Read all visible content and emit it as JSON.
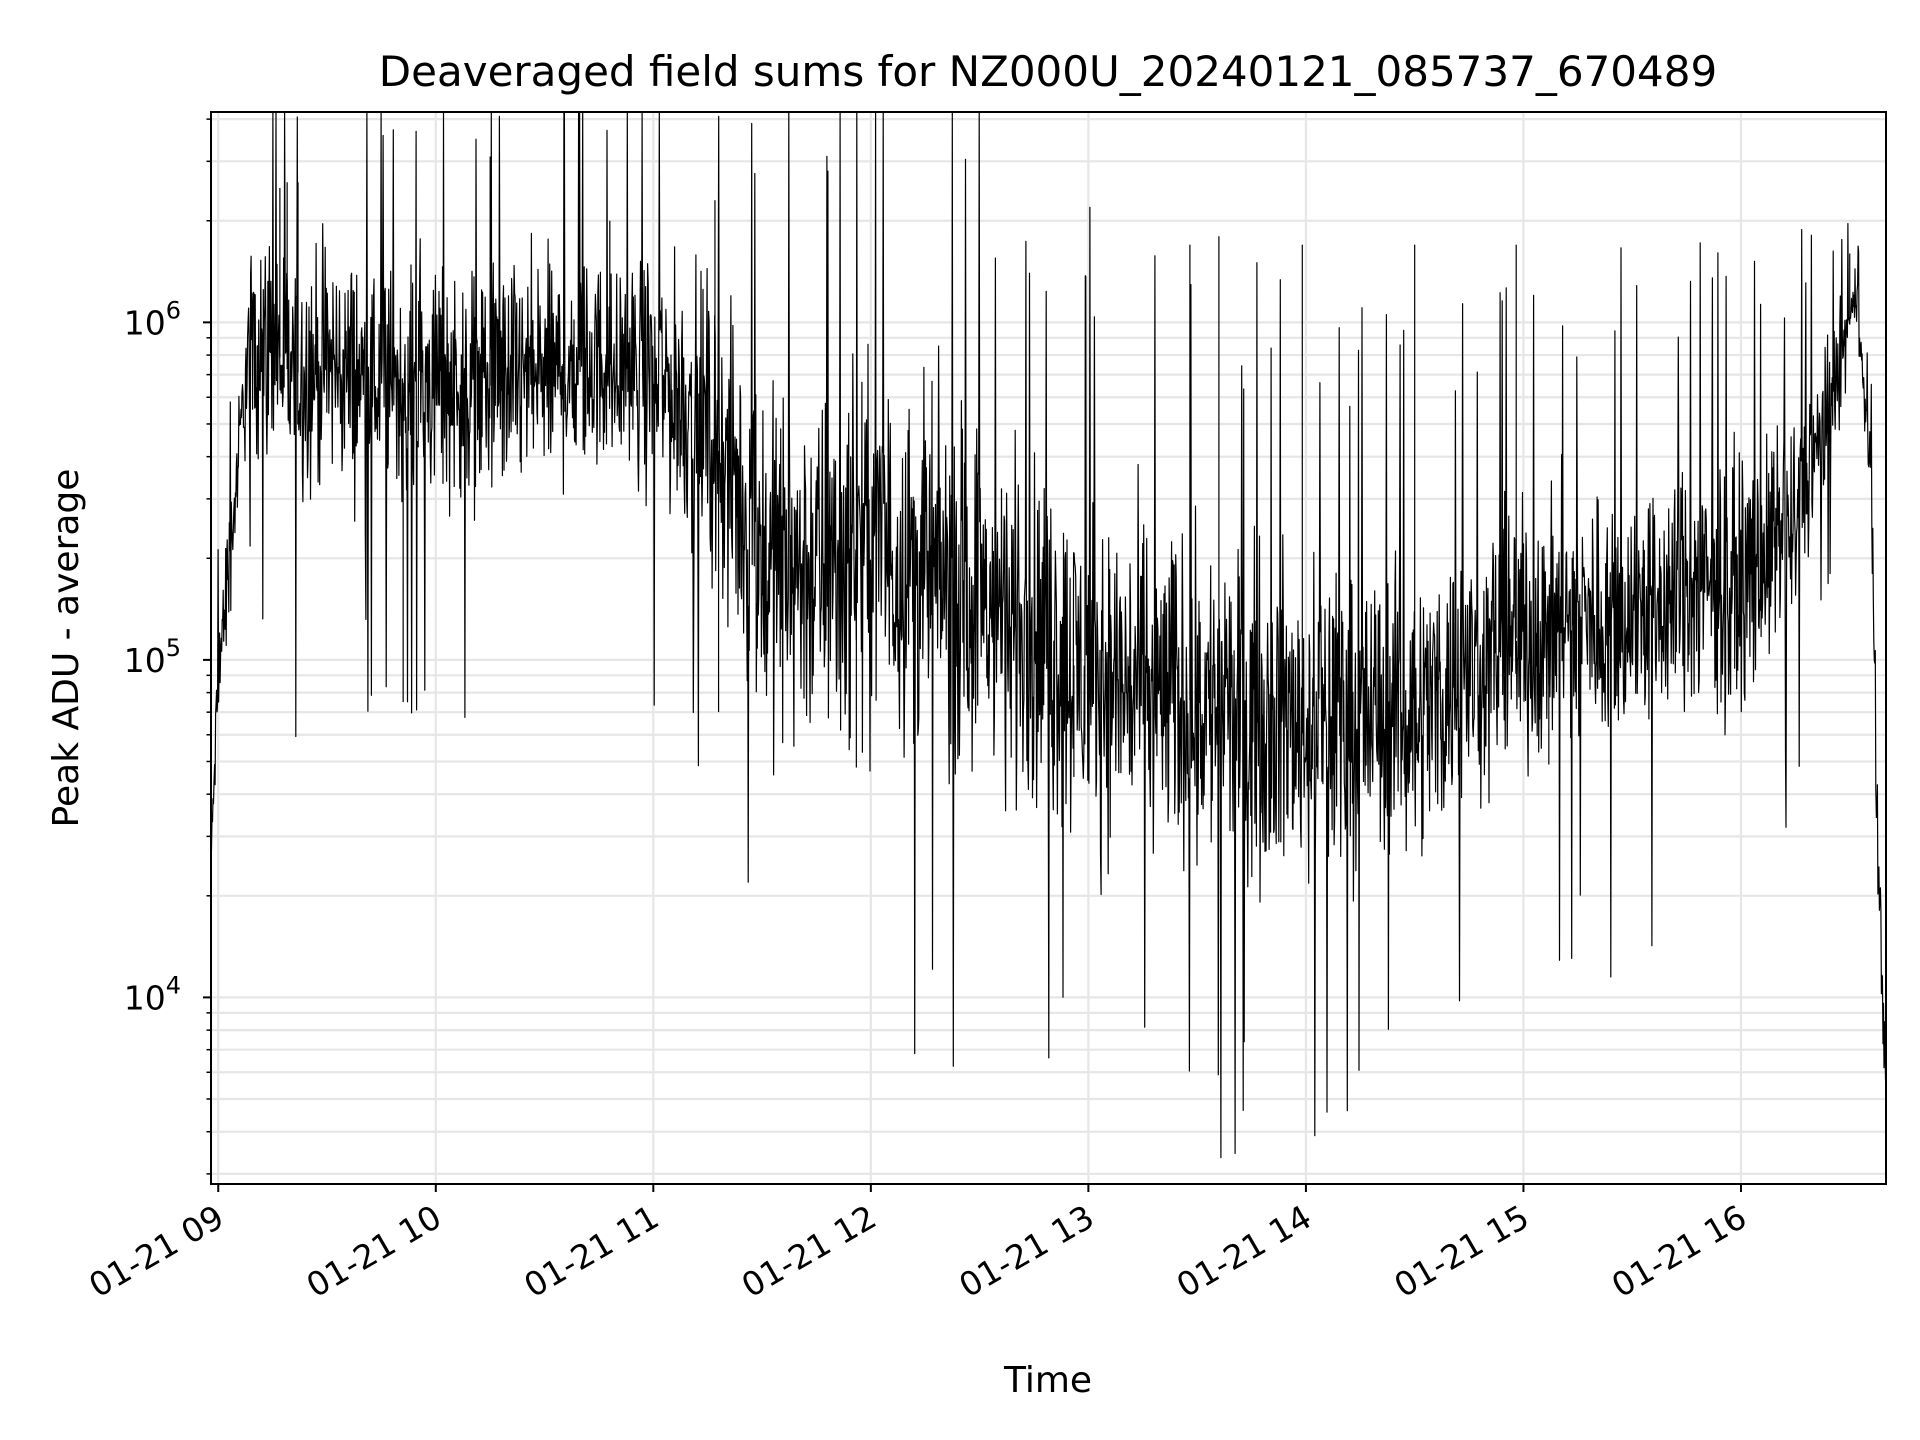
{
  "chart_data": {
    "type": "line",
    "title": "Deaveraged field sums for NZ000U_20240121_085737_670489",
    "xlabel": "Time",
    "ylabel": "Peak ADU - average",
    "yscale": "log",
    "ylim": [
      2800,
      4200000
    ],
    "xlim": [
      "2024-01-21 08:58",
      "2024-01-21 16:40"
    ],
    "x_ticks": [
      "01-21 09",
      "01-21 10",
      "01-21 11",
      "01-21 12",
      "01-21 13",
      "01-21 14",
      "01-21 15",
      "01-21 16"
    ],
    "x_tick_times": [
      "2024-01-21 09:00",
      "2024-01-21 10:00",
      "2024-01-21 11:00",
      "2024-01-21 12:00",
      "2024-01-21 13:00",
      "2024-01-21 14:00",
      "2024-01-21 15:00",
      "2024-01-21 16:00"
    ],
    "y_ticks": [
      {
        "value": 10000,
        "base": "10",
        "exp": "4"
      },
      {
        "value": 100000,
        "base": "10",
        "exp": "5"
      },
      {
        "value": 1000000,
        "base": "10",
        "exp": "6"
      }
    ],
    "grid": true,
    "line_color": "#000000",
    "series": [
      {
        "x": [
          "2024-01-21 08:58",
          "2024-01-21 09:00",
          "2024-01-21 09:02",
          "2024-01-21 09:04",
          "2024-01-21 09:06",
          "2024-01-21 09:08",
          "2024-01-21 09:10",
          "2024-01-21 09:15",
          "2024-01-21 09:20",
          "2024-01-21 09:30",
          "2024-01-21 09:45",
          "2024-01-21 10:00",
          "2024-01-21 10:15",
          "2024-01-21 10:30",
          "2024-01-21 10:45",
          "2024-01-21 11:00",
          "2024-01-21 11:15",
          "2024-01-21 11:30",
          "2024-01-21 11:45",
          "2024-01-21 12:00",
          "2024-01-21 12:30",
          "2024-01-21 13:00",
          "2024-01-21 13:30",
          "2024-01-21 14:00",
          "2024-01-21 14:30",
          "2024-01-21 15:00",
          "2024-01-21 15:30",
          "2024-01-21 16:00",
          "2024-01-21 16:15",
          "2024-01-21 16:25",
          "2024-01-21 16:32",
          "2024-01-21 16:36",
          "2024-01-21 16:38",
          "2024-01-21 16:40"
        ],
        "median": [
          25000,
          90000,
          150000,
          250000,
          450000,
          750000,
          900000,
          850000,
          700000,
          750000,
          650000,
          680000,
          650000,
          700000,
          750000,
          700000,
          500000,
          200000,
          180000,
          220000,
          150000,
          90000,
          75000,
          65000,
          70000,
          120000,
          140000,
          170000,
          250000,
          600000,
          1200000,
          300000,
          20000,
          6000
        ],
        "spread": [
          0.1,
          0.25,
          0.25,
          0.25,
          0.25,
          0.35,
          0.45,
          0.5,
          0.55,
          0.5,
          0.5,
          0.5,
          0.5,
          0.5,
          0.45,
          0.5,
          0.6,
          0.75,
          0.75,
          0.75,
          0.75,
          0.7,
          0.7,
          0.65,
          0.6,
          0.55,
          0.55,
          0.5,
          0.45,
          0.3,
          0.12,
          0.2,
          0.3,
          0.2
        ]
      }
    ],
    "peaks": [
      {
        "x": "2024-01-21 09:17",
        "y": 2500000
      },
      {
        "x": "2024-01-21 09:19",
        "y": 2600000
      },
      {
        "x": "2024-01-21 09:22",
        "y": 2600000
      },
      {
        "x": "2024-01-21 09:51",
        "y": 75000
      },
      {
        "x": "2024-01-21 10:15",
        "y": 3100000
      },
      {
        "x": "2024-01-21 10:48",
        "y": 2000000
      },
      {
        "x": "2024-01-21 11:17",
        "y": 2300000
      },
      {
        "x": "2024-01-21 11:18",
        "y": 70000
      },
      {
        "x": "2024-01-21 11:56",
        "y": 48000
      },
      {
        "x": "2024-01-21 12:56",
        "y": 45000
      },
      {
        "x": "2024-01-21 13:28",
        "y": 1700000
      },
      {
        "x": "2024-01-21 13:36",
        "y": 1800000
      },
      {
        "x": "2024-01-21 13:48",
        "y": 37000
      },
      {
        "x": "2024-01-21 13:59",
        "y": 1700000
      },
      {
        "x": "2024-01-21 14:30",
        "y": 1700000
      },
      {
        "x": "2024-01-21 14:58",
        "y": 1700000
      },
      {
        "x": "2024-01-21 15:07",
        "y": 49000
      },
      {
        "x": "2024-01-21 16:30",
        "y": 1600000
      }
    ]
  }
}
